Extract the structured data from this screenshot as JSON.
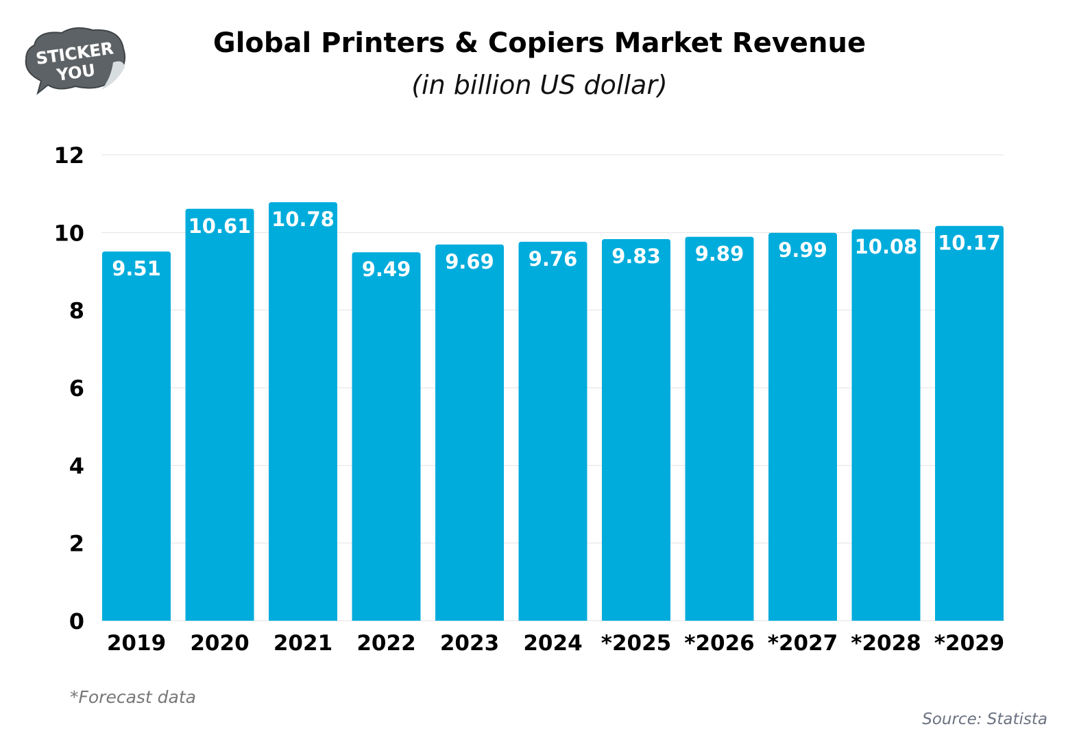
{
  "logo": {
    "text": "STICKER YOU"
  },
  "chart_data": {
    "type": "bar",
    "title": "Global Printers & Copiers Market Revenue",
    "subtitle": "(in billion US dollar)",
    "categories": [
      "2019",
      "2020",
      "2021",
      "2022",
      "2023",
      "2024",
      "*2025",
      "*2026",
      "*2027",
      "*2028",
      "*2029"
    ],
    "values": [
      9.51,
      10.61,
      10.78,
      9.49,
      9.69,
      9.76,
      9.83,
      9.89,
      9.99,
      10.08,
      10.17
    ],
    "value_labels": [
      "9.51",
      "10.61",
      "10.78",
      "9.49",
      "9.69",
      "9.76",
      "9.83",
      "9.89",
      "9.99",
      "10.08",
      "10.17"
    ],
    "ylim": [
      0,
      12
    ],
    "yticks": [
      "0",
      "2",
      "4",
      "6",
      "8",
      "10",
      "12"
    ],
    "grid": true,
    "bar_color": "#00ACDC",
    "xlabel": "",
    "ylabel": ""
  },
  "footnote": "*Forecast data",
  "source": "Source: Statista"
}
